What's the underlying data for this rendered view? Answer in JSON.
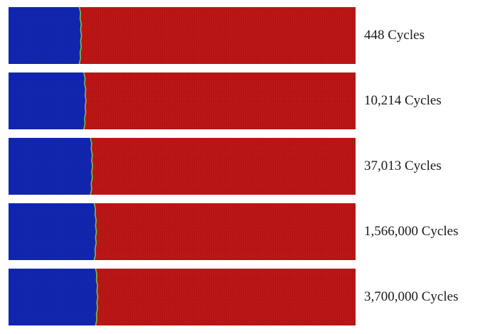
{
  "colors": {
    "left_region": "#1228b4",
    "right_region": "#c11818",
    "front": "#74c24a",
    "mesh_on_blue": "#0a1a8a",
    "mesh_on_red": "#8c0c0c"
  },
  "frames": [
    {
      "label": "448 Cycles",
      "front_fraction": 0.205
    },
    {
      "label": "10,214 Cycles",
      "front_fraction": 0.218
    },
    {
      "label": "37,013 Cycles",
      "front_fraction": 0.237
    },
    {
      "label": "1,566,000 Cycles",
      "front_fraction": 0.248
    },
    {
      "label": "3,700,000 Cycles",
      "front_fraction": 0.252
    }
  ]
}
